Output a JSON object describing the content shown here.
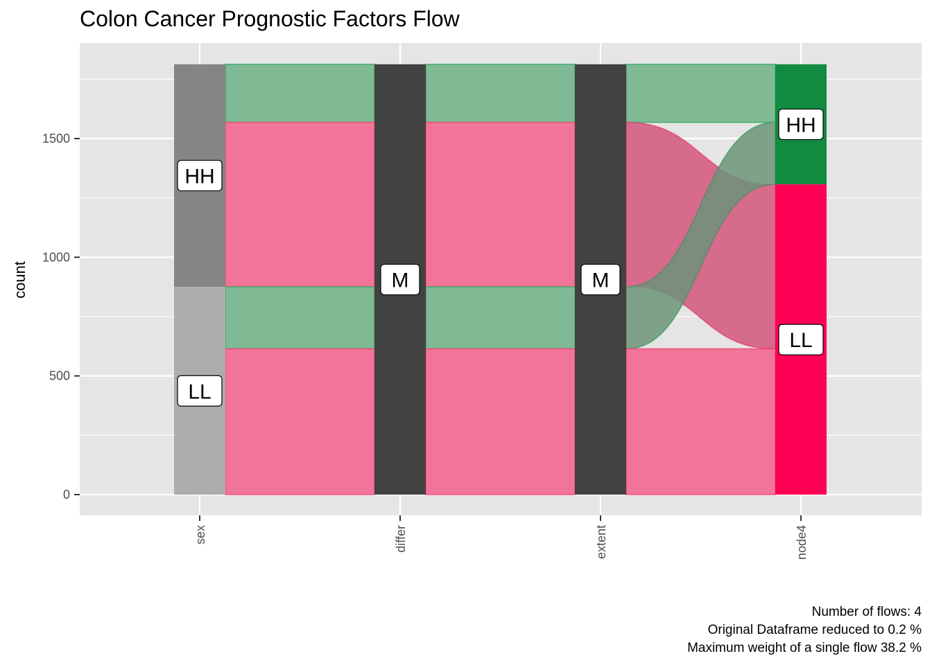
{
  "chart_data": {
    "type": "alluvial",
    "title": "Colon Cancer Prognostic Factors Flow",
    "xlabel": "",
    "ylabel": "count",
    "ylim": [
      -88,
      1855
    ],
    "y_ticks": [
      0,
      500,
      1000,
      1500
    ],
    "y_minor_ticks": [
      250,
      750,
      1250,
      1750
    ],
    "x_categories": [
      "sex",
      "differ",
      "extent",
      "node4"
    ],
    "grid": true,
    "legend": "none",
    "colors": {
      "panel_bg": "#e5e5e5",
      "grid": "#ffffff",
      "flow_HH": "#7fba94",
      "flow_LL": "#f07599",
      "flow_HH_stroke": "#3ca96b",
      "flow_LL_stroke": "#f5457b",
      "node_sex_HH": "#858585",
      "node_sex_LL": "#adadad",
      "node_M": "#424242",
      "node_node4_HH": "#128a40",
      "node_node4_LL": "#ff0055",
      "axis_tick": "#333333"
    },
    "nodes": [
      {
        "axis": "sex",
        "label": "HH",
        "y0": 875,
        "y1": 1813,
        "color": "node_sex_HH"
      },
      {
        "axis": "sex",
        "label": "LL",
        "y0": 0,
        "y1": 875,
        "color": "node_sex_LL"
      },
      {
        "axis": "differ",
        "label": "M",
        "y0": 0,
        "y1": 1813,
        "color": "node_M"
      },
      {
        "axis": "extent",
        "label": "M",
        "y0": 0,
        "y1": 1813,
        "color": "node_M"
      },
      {
        "axis": "node4",
        "label": "HH",
        "y0": 1307,
        "y1": 1813,
        "color": "node_node4_HH"
      },
      {
        "axis": "node4",
        "label": "LL",
        "y0": 0,
        "y1": 1307,
        "color": "node_node4_LL"
      }
    ],
    "node_labels": [
      {
        "axis": "sex",
        "text": "HH",
        "y": 1344
      },
      {
        "axis": "sex",
        "text": "LL",
        "y": 437
      },
      {
        "axis": "differ",
        "text": "M",
        "y": 906
      },
      {
        "axis": "extent",
        "text": "M",
        "y": 906
      },
      {
        "axis": "node4",
        "text": "HH",
        "y": 1560
      },
      {
        "axis": "node4",
        "text": "LL",
        "y": 653
      }
    ],
    "flows": [
      {
        "path": [
          "HH",
          "M",
          "M",
          "HH"
        ],
        "value": 245,
        "fill": "flow_HH",
        "stroke": "flow_HH_stroke",
        "segments": [
          [
            1568,
            1813
          ],
          [
            1568,
            1813
          ],
          [
            1568,
            1813
          ]
        ]
      },
      {
        "path": [
          "HH",
          "M",
          "M",
          "LL"
        ],
        "value": 693,
        "fill": "flow_LL",
        "stroke": "flow_LL_stroke",
        "segments": [
          [
            875,
            1568
          ],
          [
            875,
            1568
          ],
          [
            875,
            1568,
            614,
            1307
          ]
        ]
      },
      {
        "path": [
          "LL",
          "M",
          "M",
          "HH"
        ],
        "value": 261,
        "fill": "flow_HH",
        "stroke": "flow_HH_stroke",
        "segments": [
          [
            614,
            875
          ],
          [
            614,
            875
          ],
          [
            614,
            875,
            1307,
            1568
          ]
        ]
      },
      {
        "path": [
          "LL",
          "M",
          "M",
          "LL"
        ],
        "value": 614,
        "fill": "flow_LL",
        "stroke": "flow_LL_stroke",
        "segments": [
          [
            0,
            614
          ],
          [
            0,
            614
          ],
          [
            0,
            614
          ]
        ]
      }
    ],
    "caption": [
      "Number of flows: 4",
      "Original Dataframe reduced to 0.2 %",
      "Maximum weight of a single flow 38.2 %"
    ]
  }
}
